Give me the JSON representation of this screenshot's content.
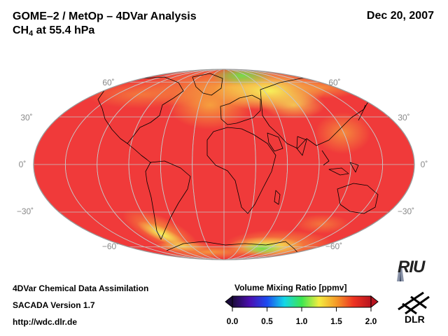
{
  "header": {
    "title_line1": "GOME–2 / MetOp – 4DVar Analysis",
    "title_species": "CH",
    "title_species_sub": "4",
    "title_level": " at 55.4 hPa",
    "date": "Dec 20, 2007"
  },
  "map": {
    "projection": "Hammer-Aitoff global",
    "parameter": "CH4 volume mixing ratio at 55.4 hPa",
    "latitude_labels": {
      "n60": "60˚",
      "n30": "30˚",
      "eq": "0˚",
      "s30": "−30˚",
      "s60": "−60˚"
    },
    "field_colors": {
      "background_high": "#f03a3a",
      "mid": "#f6a640",
      "low": "#f4ec58",
      "lowest": "#7fe04a"
    },
    "coastline_color": "#000000",
    "graticule_color": "#bdbdbd"
  },
  "colorbar": {
    "title": "Volume Mixing Ratio [ppmv]",
    "ticks": [
      "0.0",
      "0.5",
      "1.0",
      "1.5",
      "2.0"
    ],
    "min": 0.0,
    "max": 2.0,
    "stops": [
      "#1a0a3a",
      "#4b0fb0",
      "#1c4bf0",
      "#14d6e8",
      "#3de650",
      "#f4ec40",
      "#f59a28",
      "#ee3322",
      "#b8141f"
    ]
  },
  "footer": {
    "line1": "4DVar Chemical Data Assimilation",
    "line2": "SACADA Version 1.7",
    "line3": "http://wdc.dlr.de"
  },
  "logos": {
    "riu": "RIU",
    "dlr": "DLR"
  }
}
